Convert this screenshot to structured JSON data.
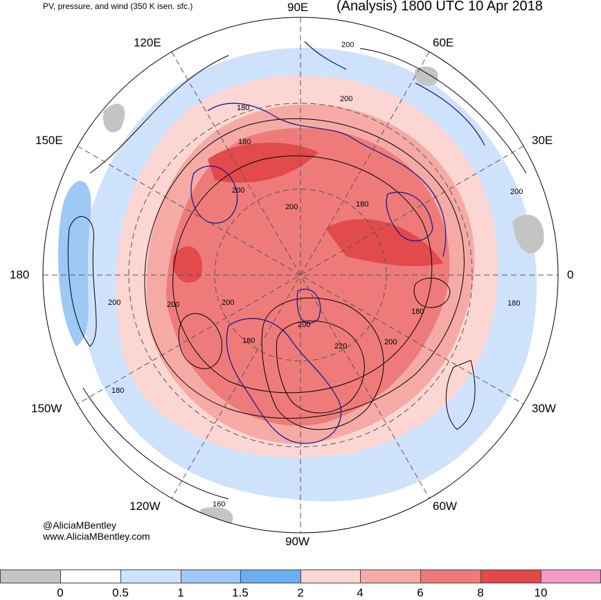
{
  "header": {
    "subtitle": "PV, pressure, and wind (350 K isen. sfc.)",
    "title": "(Analysis) 1800 UTC 10 Apr 2018"
  },
  "credits": {
    "twitter": "@AliciaMBentley",
    "website": "www.AliciaMBentley.com"
  },
  "longitude_labels": {
    "lon_90e": "90E",
    "lon_60e": "60E",
    "lon_30e": "30E",
    "lon_0": "0",
    "lon_30w": "30W",
    "lon_60w": "60W",
    "lon_90w": "90W",
    "lon_120w": "120W",
    "lon_150w": "150W",
    "lon_180": "180",
    "lon_150e": "150E",
    "lon_120e": "120E"
  },
  "contour_labels": [
    "200",
    "200",
    "180",
    "180",
    "200",
    "200",
    "180",
    "200",
    "200",
    "180",
    "200",
    "200",
    "200",
    "180",
    "220",
    "200",
    "180",
    "180",
    "160"
  ],
  "colorbar": {
    "ticks": [
      "0",
      "0.5",
      "1",
      "1.5",
      "2",
      "4",
      "6",
      "8",
      "10"
    ],
    "colors": [
      "#c4c4c4",
      "#ffffff",
      "#cfe2fb",
      "#9ec8f5",
      "#6aaef0",
      "#fbd6d3",
      "#f5aaa6",
      "#ee7b7a",
      "#e24a4c",
      "#f29ac3"
    ]
  }
}
